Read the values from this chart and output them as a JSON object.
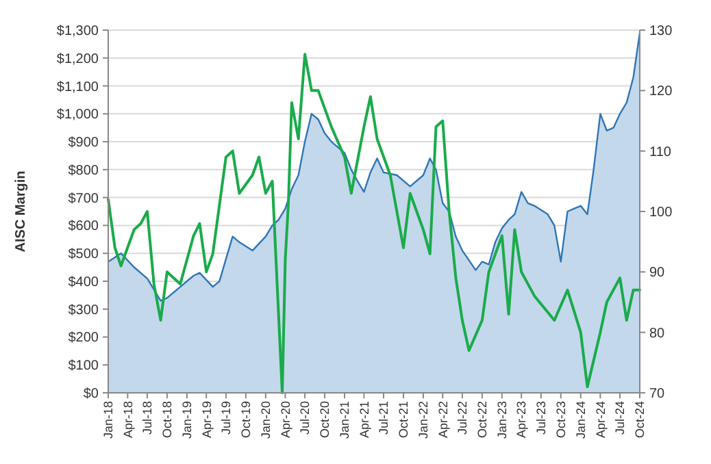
{
  "chart_data": {
    "type": "area",
    "ylabel": "AISC Margin",
    "grid": "y",
    "xlim": [
      "2018-01",
      "2024-10"
    ],
    "xticks": [
      {
        "value": "2018-01",
        "label": "Jan-18"
      },
      {
        "value": "2018-04",
        "label": "Apr-18"
      },
      {
        "value": "2018-07",
        "label": "Jul-18"
      },
      {
        "value": "2018-10",
        "label": "Oct-18"
      },
      {
        "value": "2019-01",
        "label": "Jan-19"
      },
      {
        "value": "2019-04",
        "label": "Apr-19"
      },
      {
        "value": "2019-07",
        "label": "Jul-19"
      },
      {
        "value": "2019-10",
        "label": "Oct-19"
      },
      {
        "value": "2020-01",
        "label": "Jan-20"
      },
      {
        "value": "2020-04",
        "label": "Apr-20"
      },
      {
        "value": "2020-07",
        "label": "Jul-20"
      },
      {
        "value": "2020-10",
        "label": "Oct-20"
      },
      {
        "value": "2021-01",
        "label": "Jan-21"
      },
      {
        "value": "2021-04",
        "label": "Apr-21"
      },
      {
        "value": "2021-07",
        "label": "Jul-21"
      },
      {
        "value": "2021-10",
        "label": "Oct-21"
      },
      {
        "value": "2022-01",
        "label": "Jan-22"
      },
      {
        "value": "2022-04",
        "label": "Apr-22"
      },
      {
        "value": "2022-07",
        "label": "Jul-22"
      },
      {
        "value": "2022-10",
        "label": "Oct-22"
      },
      {
        "value": "2023-01",
        "label": "Jan-23"
      },
      {
        "value": "2023-04",
        "label": "Apr-23"
      },
      {
        "value": "2023-07",
        "label": "Jul-23"
      },
      {
        "value": "2023-10",
        "label": "Oct-23"
      },
      {
        "value": "2024-01",
        "label": "Jan-24"
      },
      {
        "value": "2024-04",
        "label": "Apr-24"
      },
      {
        "value": "2024-07",
        "label": "Jul-24"
      },
      {
        "value": "2024-10",
        "label": "Oct-24"
      }
    ],
    "ylim": [
      0,
      1300
    ],
    "yticks": [
      {
        "value": 0,
        "label": "$0"
      },
      {
        "value": 100,
        "label": "$100"
      },
      {
        "value": 200,
        "label": "$200"
      },
      {
        "value": 300,
        "label": "$300"
      },
      {
        "value": 400,
        "label": "$400"
      },
      {
        "value": 500,
        "label": "$500"
      },
      {
        "value": 600,
        "label": "$600"
      },
      {
        "value": 700,
        "label": "$700"
      },
      {
        "value": 800,
        "label": "$800"
      },
      {
        "value": 900,
        "label": "$900"
      },
      {
        "value": 1000,
        "label": "$1,000"
      },
      {
        "value": 1100,
        "label": "$1,100"
      },
      {
        "value": 1200,
        "label": "$1,200"
      },
      {
        "value": 1300,
        "label": "$1,300"
      }
    ],
    "y2lim": [
      70,
      130
    ],
    "y2ticks": [
      70,
      80,
      90,
      100,
      110,
      120,
      130
    ],
    "series": [
      {
        "color": "#2e75b6",
        "x": [
          "2018-01",
          "2018-03",
          "2018-05",
          "2018-07",
          "2018-09",
          "2018-10",
          "2018-12",
          "2019-02",
          "2019-03",
          "2019-05",
          "2019-06",
          "2019-07",
          "2019-08",
          "2019-09",
          "2019-11",
          "2020-01",
          "2020-02",
          "2020-03",
          "2020-04",
          "2020-05",
          "2020-06",
          "2020-07",
          "2020-08",
          "2020-09",
          "2020-10",
          "2020-11",
          "2021-01",
          "2021-02",
          "2021-03",
          "2021-04",
          "2021-05",
          "2021-06",
          "2021-07",
          "2021-09",
          "2021-11",
          "2022-01",
          "2022-02",
          "2022-03",
          "2022-04",
          "2022-05",
          "2022-06",
          "2022-07",
          "2022-09",
          "2022-10",
          "2022-11",
          "2022-12",
          "2023-01",
          "2023-02",
          "2023-03",
          "2023-04",
          "2023-05",
          "2023-06",
          "2023-08",
          "2023-09",
          "2023-10",
          "2023-11",
          "2023-12",
          "2024-01",
          "2024-02",
          "2024-03",
          "2024-04",
          "2024-05",
          "2024-06",
          "2024-07",
          "2024-08",
          "2024-09",
          "2024-10"
        ],
        "values": [
          470,
          500,
          450,
          410,
          330,
          340,
          380,
          420,
          430,
          380,
          400,
          480,
          560,
          540,
          510,
          560,
          600,
          620,
          660,
          730,
          780,
          900,
          1000,
          980,
          930,
          900,
          860,
          800,
          760,
          720,
          790,
          840,
          790,
          780,
          740,
          780,
          840,
          800,
          680,
          650,
          560,
          510,
          440,
          470,
          460,
          540,
          590,
          620,
          640,
          720,
          680,
          670,
          640,
          600,
          470,
          650,
          660,
          670,
          640,
          800,
          1000,
          940,
          950,
          1000,
          1040,
          1130,
          1290
        ]
      },
      {
        "type": "line",
        "axis": "y2",
        "color": "#1aab4b",
        "x": [
          "2018-01",
          "2018-02",
          "2018-03",
          "2018-05",
          "2018-06",
          "2018-07",
          "2018-08",
          "2018-09",
          "2018-10",
          "2018-12",
          "2019-02",
          "2019-03",
          "2019-04",
          "2019-05",
          "2019-07",
          "2019-08",
          "2019-09",
          "2019-11",
          "2019-12",
          "2020-01",
          "2020-02",
          "2020-03-18",
          "2020-04-01",
          "2020-04-15",
          "2020-05",
          "2020-06",
          "2020-07",
          "2020-08",
          "2020-09",
          "2020-11",
          "2021-01",
          "2021-02",
          "2021-04",
          "2021-05",
          "2021-06",
          "2021-08",
          "2021-10",
          "2021-11",
          "2022-01",
          "2022-02",
          "2022-03",
          "2022-04",
          "2022-05",
          "2022-06",
          "2022-07",
          "2022-08",
          "2022-10",
          "2022-11",
          "2023-01",
          "2023-02",
          "2023-03",
          "2023-04",
          "2023-06",
          "2023-09",
          "2023-11",
          "2024-01",
          "2024-02",
          "2024-04",
          "2024-05",
          "2024-07",
          "2024-08",
          "2024-09",
          "2024-10"
        ],
        "values": [
          102,
          94,
          91,
          97,
          98,
          100,
          88,
          82,
          90,
          88,
          96,
          98,
          90,
          93,
          109,
          110,
          103,
          106,
          109,
          103,
          105,
          70,
          92,
          101,
          118,
          112,
          126,
          120,
          120,
          114,
          109,
          103,
          114,
          119,
          112,
          106,
          94,
          103,
          97,
          93,
          114,
          115,
          100,
          89,
          82,
          77,
          82,
          90,
          96,
          83,
          97,
          90,
          86,
          82,
          87,
          80,
          71,
          80,
          85,
          89,
          82,
          87,
          87
        ]
      }
    ]
  }
}
